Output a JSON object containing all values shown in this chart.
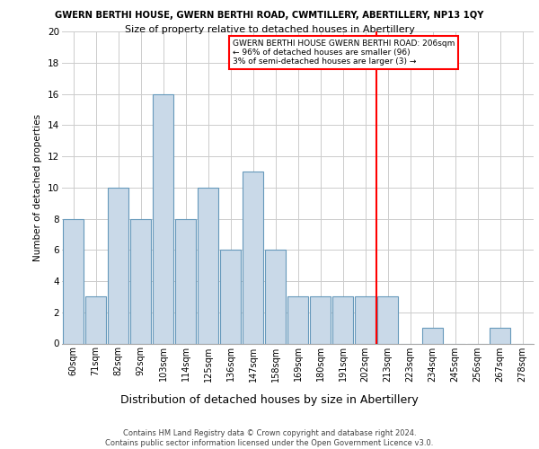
{
  "title_line1": "GWERN BERTHI HOUSE, GWERN BERTHI ROAD, CWMTILLERY, ABERTILLERY, NP13 1QY",
  "title_line2": "Size of property relative to detached houses in Abertillery",
  "xlabel": "Distribution of detached houses by size in Abertillery",
  "ylabel": "Number of detached properties",
  "categories": [
    "60sqm",
    "71sqm",
    "82sqm",
    "92sqm",
    "103sqm",
    "114sqm",
    "125sqm",
    "136sqm",
    "147sqm",
    "158sqm",
    "169sqm",
    "180sqm",
    "191sqm",
    "202sqm",
    "213sqm",
    "223sqm",
    "234sqm",
    "245sqm",
    "256sqm",
    "267sqm",
    "278sqm"
  ],
  "values": [
    8,
    3,
    10,
    8,
    16,
    8,
    10,
    6,
    11,
    6,
    3,
    3,
    3,
    3,
    3,
    0,
    1,
    0,
    0,
    1,
    0
  ],
  "bar_color": "#c9d9e8",
  "bar_edge_color": "#6699bb",
  "vline_x_idx": 14,
  "vline_color": "red",
  "annotation_text": "GWERN BERTHI HOUSE GWERN BERTHI ROAD: 206sqm\n← 96% of detached houses are smaller (96)\n3% of semi-detached houses are larger (3) →",
  "annotation_box_color": "red",
  "ylim": [
    0,
    20
  ],
  "yticks": [
    0,
    2,
    4,
    6,
    8,
    10,
    12,
    14,
    16,
    18,
    20
  ],
  "footer_text": "Contains HM Land Registry data © Crown copyright and database right 2024.\nContains public sector information licensed under the Open Government Licence v3.0.",
  "background_color": "#ffffff",
  "grid_color": "#cccccc"
}
